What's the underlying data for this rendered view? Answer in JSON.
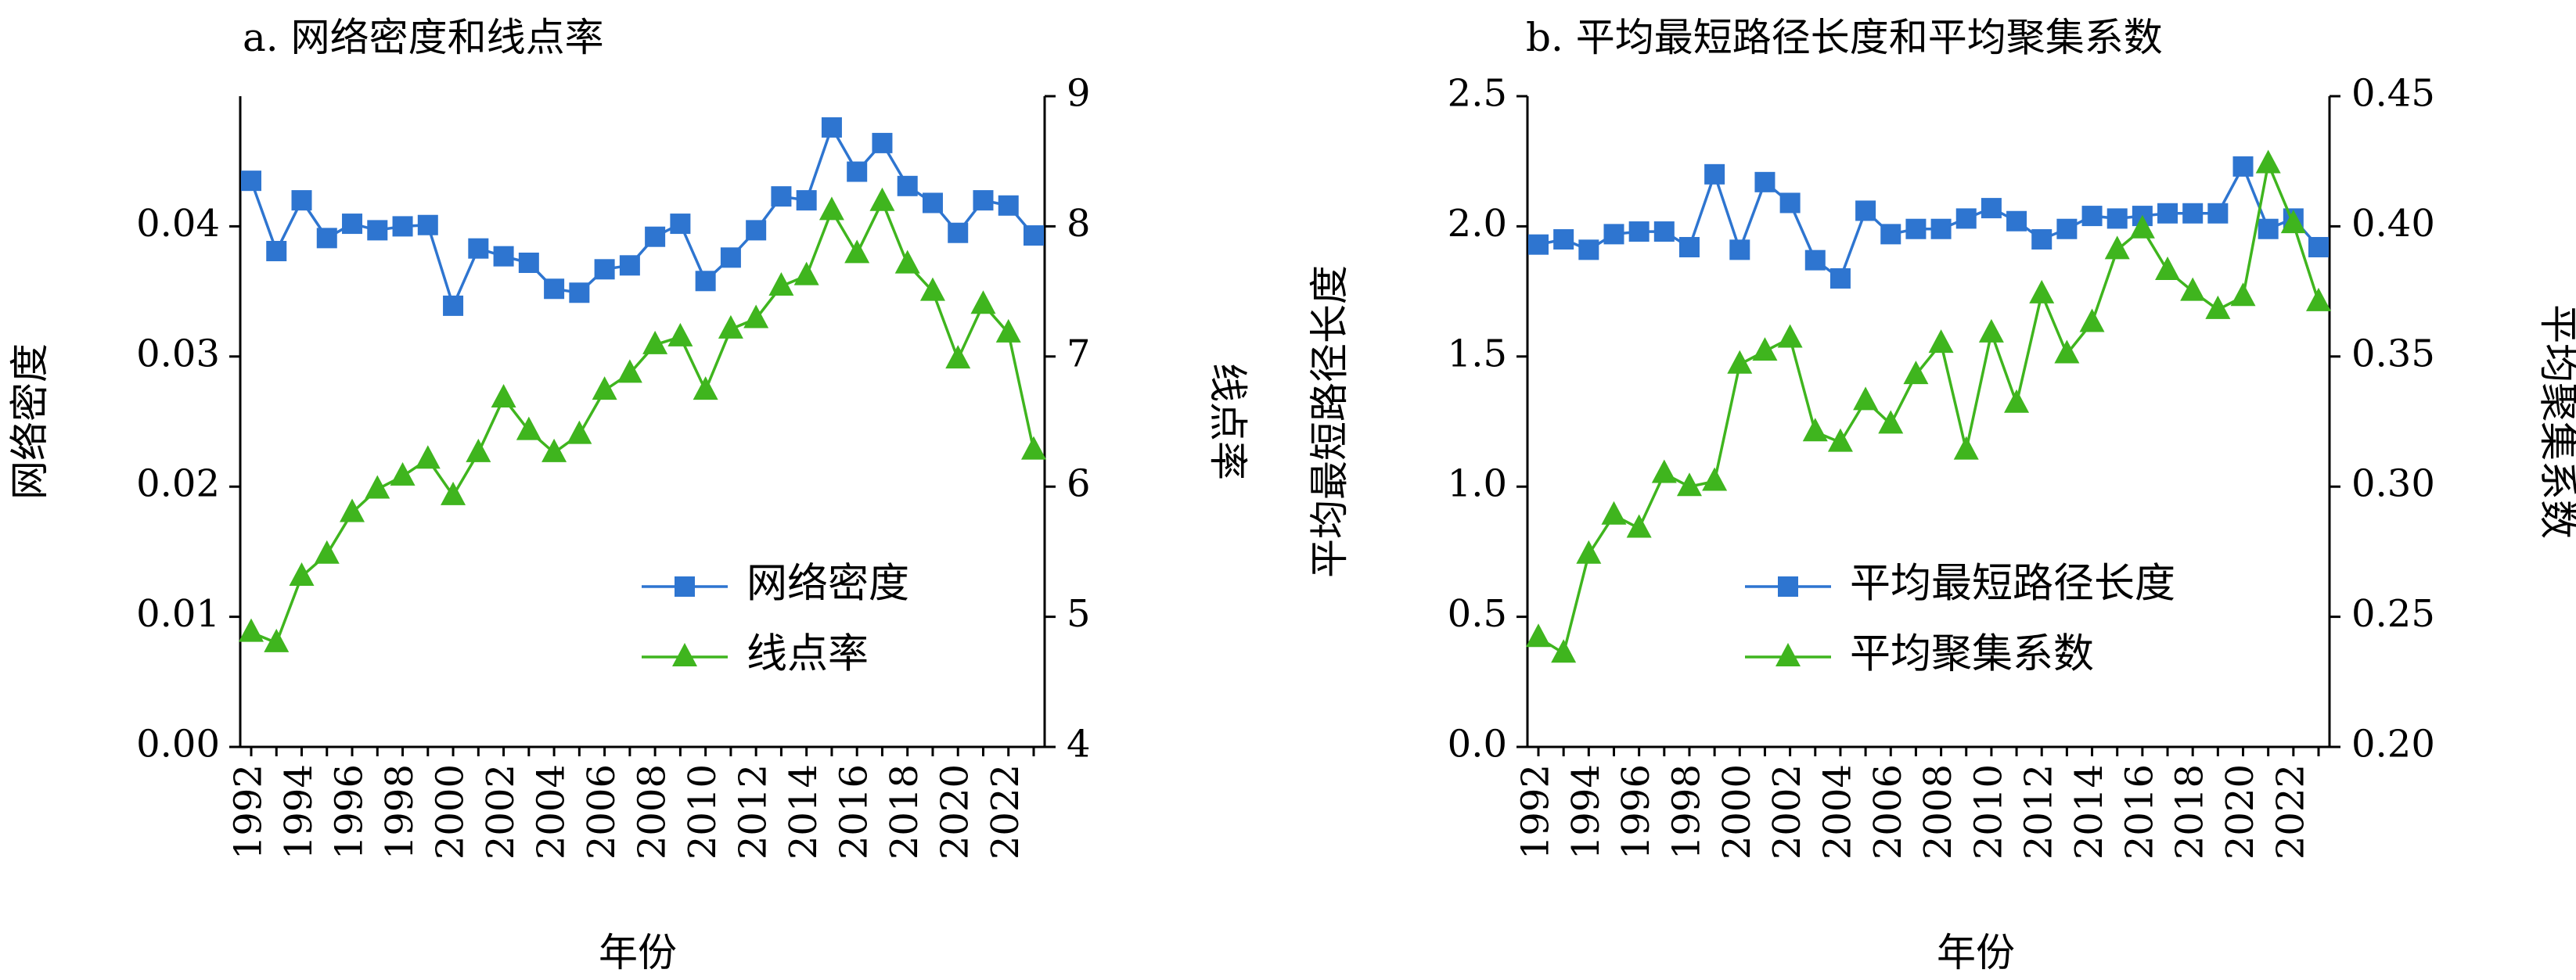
{
  "chart_data": [
    {
      "type": "line",
      "title": "a. 网络密度和线点率",
      "xlabel": "年份",
      "ylabel_left": "网络密度",
      "ylabel_right": "线点率",
      "y_left_lim": [
        0,
        0.05
      ],
      "y_right_lim": [
        4,
        9
      ],
      "y_left_ticks": [
        "0.00",
        "0.01",
        "0.02",
        "0.03",
        "0.04"
      ],
      "y_right_ticks": [
        "4",
        "5",
        "6",
        "7",
        "8",
        "9"
      ],
      "x_tick_labels": [
        "1992",
        "1994",
        "1996",
        "1998",
        "2000",
        "2002",
        "2004",
        "2006",
        "2008",
        "2010",
        "2012",
        "2014",
        "2016",
        "2018",
        "2020",
        "2022"
      ],
      "x": [
        1992,
        1993,
        1994,
        1995,
        1996,
        1997,
        1998,
        1999,
        2000,
        2001,
        2002,
        2003,
        2004,
        2005,
        2006,
        2007,
        2008,
        2009,
        2010,
        2011,
        2012,
        2013,
        2014,
        2015,
        2016,
        2017,
        2018,
        2019,
        2020,
        2021,
        2022,
        2023
      ],
      "legend_position": "lower-right",
      "series": [
        {
          "name": "网络密度",
          "axis": "left",
          "color": "#2E75D0",
          "marker": "square",
          "values": [
            0.0435,
            0.0381,
            0.042,
            0.0391,
            0.0402,
            0.0397,
            0.04,
            0.0401,
            0.0339,
            0.0383,
            0.0377,
            0.0372,
            0.0352,
            0.0349,
            0.0367,
            0.037,
            0.0392,
            0.0402,
            0.0358,
            0.0376,
            0.0397,
            0.0423,
            0.042,
            0.0476,
            0.0442,
            0.0464,
            0.0431,
            0.0418,
            0.0395,
            0.042,
            0.0416,
            0.0393
          ]
        },
        {
          "name": "线点率",
          "axis": "right",
          "color": "#3FB51E",
          "marker": "triangle",
          "values": [
            4.88,
            4.8,
            5.31,
            5.48,
            5.8,
            5.98,
            6.08,
            6.21,
            5.93,
            6.26,
            6.68,
            6.43,
            6.26,
            6.4,
            6.74,
            6.87,
            7.09,
            7.15,
            6.74,
            7.21,
            7.29,
            7.54,
            7.62,
            8.12,
            7.79,
            8.19,
            7.71,
            7.5,
            6.98,
            7.4,
            7.18,
            6.28
          ]
        }
      ]
    },
    {
      "type": "line",
      "title": "b. 平均最短路径长度和平均聚集系数",
      "xlabel": "年份",
      "ylabel_left": "平均最短路径长度",
      "ylabel_right": "平均聚集系数",
      "y_left_lim": [
        0,
        2.5
      ],
      "y_right_lim": [
        0.2,
        0.45
      ],
      "y_left_ticks": [
        "0.0",
        "0.5",
        "1.0",
        "1.5",
        "2.0",
        "2.5"
      ],
      "y_right_ticks": [
        "0.20",
        "0.25",
        "0.30",
        "0.35",
        "0.40",
        "0.45"
      ],
      "x_tick_labels": [
        "1992",
        "1994",
        "1996",
        "1998",
        "2000",
        "2002",
        "2004",
        "2006",
        "2008",
        "2010",
        "2012",
        "2014",
        "2016",
        "2018",
        "2020",
        "2022"
      ],
      "x": [
        1992,
        1993,
        1994,
        1995,
        1996,
        1997,
        1998,
        1999,
        2000,
        2001,
        2002,
        2003,
        2004,
        2005,
        2006,
        2007,
        2008,
        2009,
        2010,
        2011,
        2012,
        2013,
        2014,
        2015,
        2016,
        2017,
        2018,
        2019,
        2020,
        2021,
        2022,
        2023
      ],
      "legend_position": "lower-right",
      "series": [
        {
          "name": "平均最短路径长度",
          "axis": "left",
          "color": "#2E75D0",
          "marker": "square",
          "values": [
            1.93,
            1.95,
            1.91,
            1.97,
            1.98,
            1.98,
            1.92,
            2.2,
            1.91,
            2.17,
            2.09,
            1.87,
            1.8,
            2.06,
            1.97,
            1.99,
            1.99,
            2.03,
            2.07,
            2.02,
            1.95,
            1.99,
            2.04,
            2.03,
            2.04,
            2.05,
            2.05,
            2.05,
            2.23,
            1.99,
            2.03,
            1.92
          ]
        },
        {
          "name": "平均聚集系数",
          "axis": "right",
          "color": "#3FB51E",
          "marker": "triangle",
          "values": [
            0.242,
            0.236,
            0.274,
            0.289,
            0.284,
            0.305,
            0.3,
            0.302,
            0.347,
            0.352,
            0.357,
            0.321,
            0.317,
            0.333,
            0.324,
            0.343,
            0.355,
            0.314,
            0.359,
            0.332,
            0.374,
            0.351,
            0.363,
            0.391,
            0.399,
            0.383,
            0.375,
            0.368,
            0.373,
            0.424,
            0.401,
            0.371
          ]
        }
      ]
    }
  ]
}
